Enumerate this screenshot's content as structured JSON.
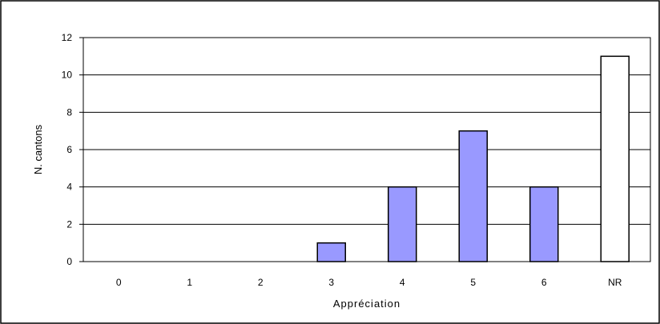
{
  "chart_data": {
    "type": "bar",
    "xlabel": "Appréciation",
    "ylabel": "N. cantons",
    "categories": [
      "0",
      "1",
      "2",
      "3",
      "4",
      "5",
      "6",
      "NR"
    ],
    "values": [
      0,
      0,
      0,
      1,
      4,
      7,
      4,
      11
    ],
    "ylim": [
      0,
      12
    ],
    "yticks": [
      "0",
      "2",
      "4",
      "6",
      "8",
      "10",
      "12"
    ],
    "grid": true,
    "legend": "none",
    "colors": {
      "bar_fill": "#9999ff",
      "nr_bar_fill": "#ffffff",
      "bar_stroke": "#000000",
      "grid": "#000000",
      "frame": "#000000"
    }
  }
}
